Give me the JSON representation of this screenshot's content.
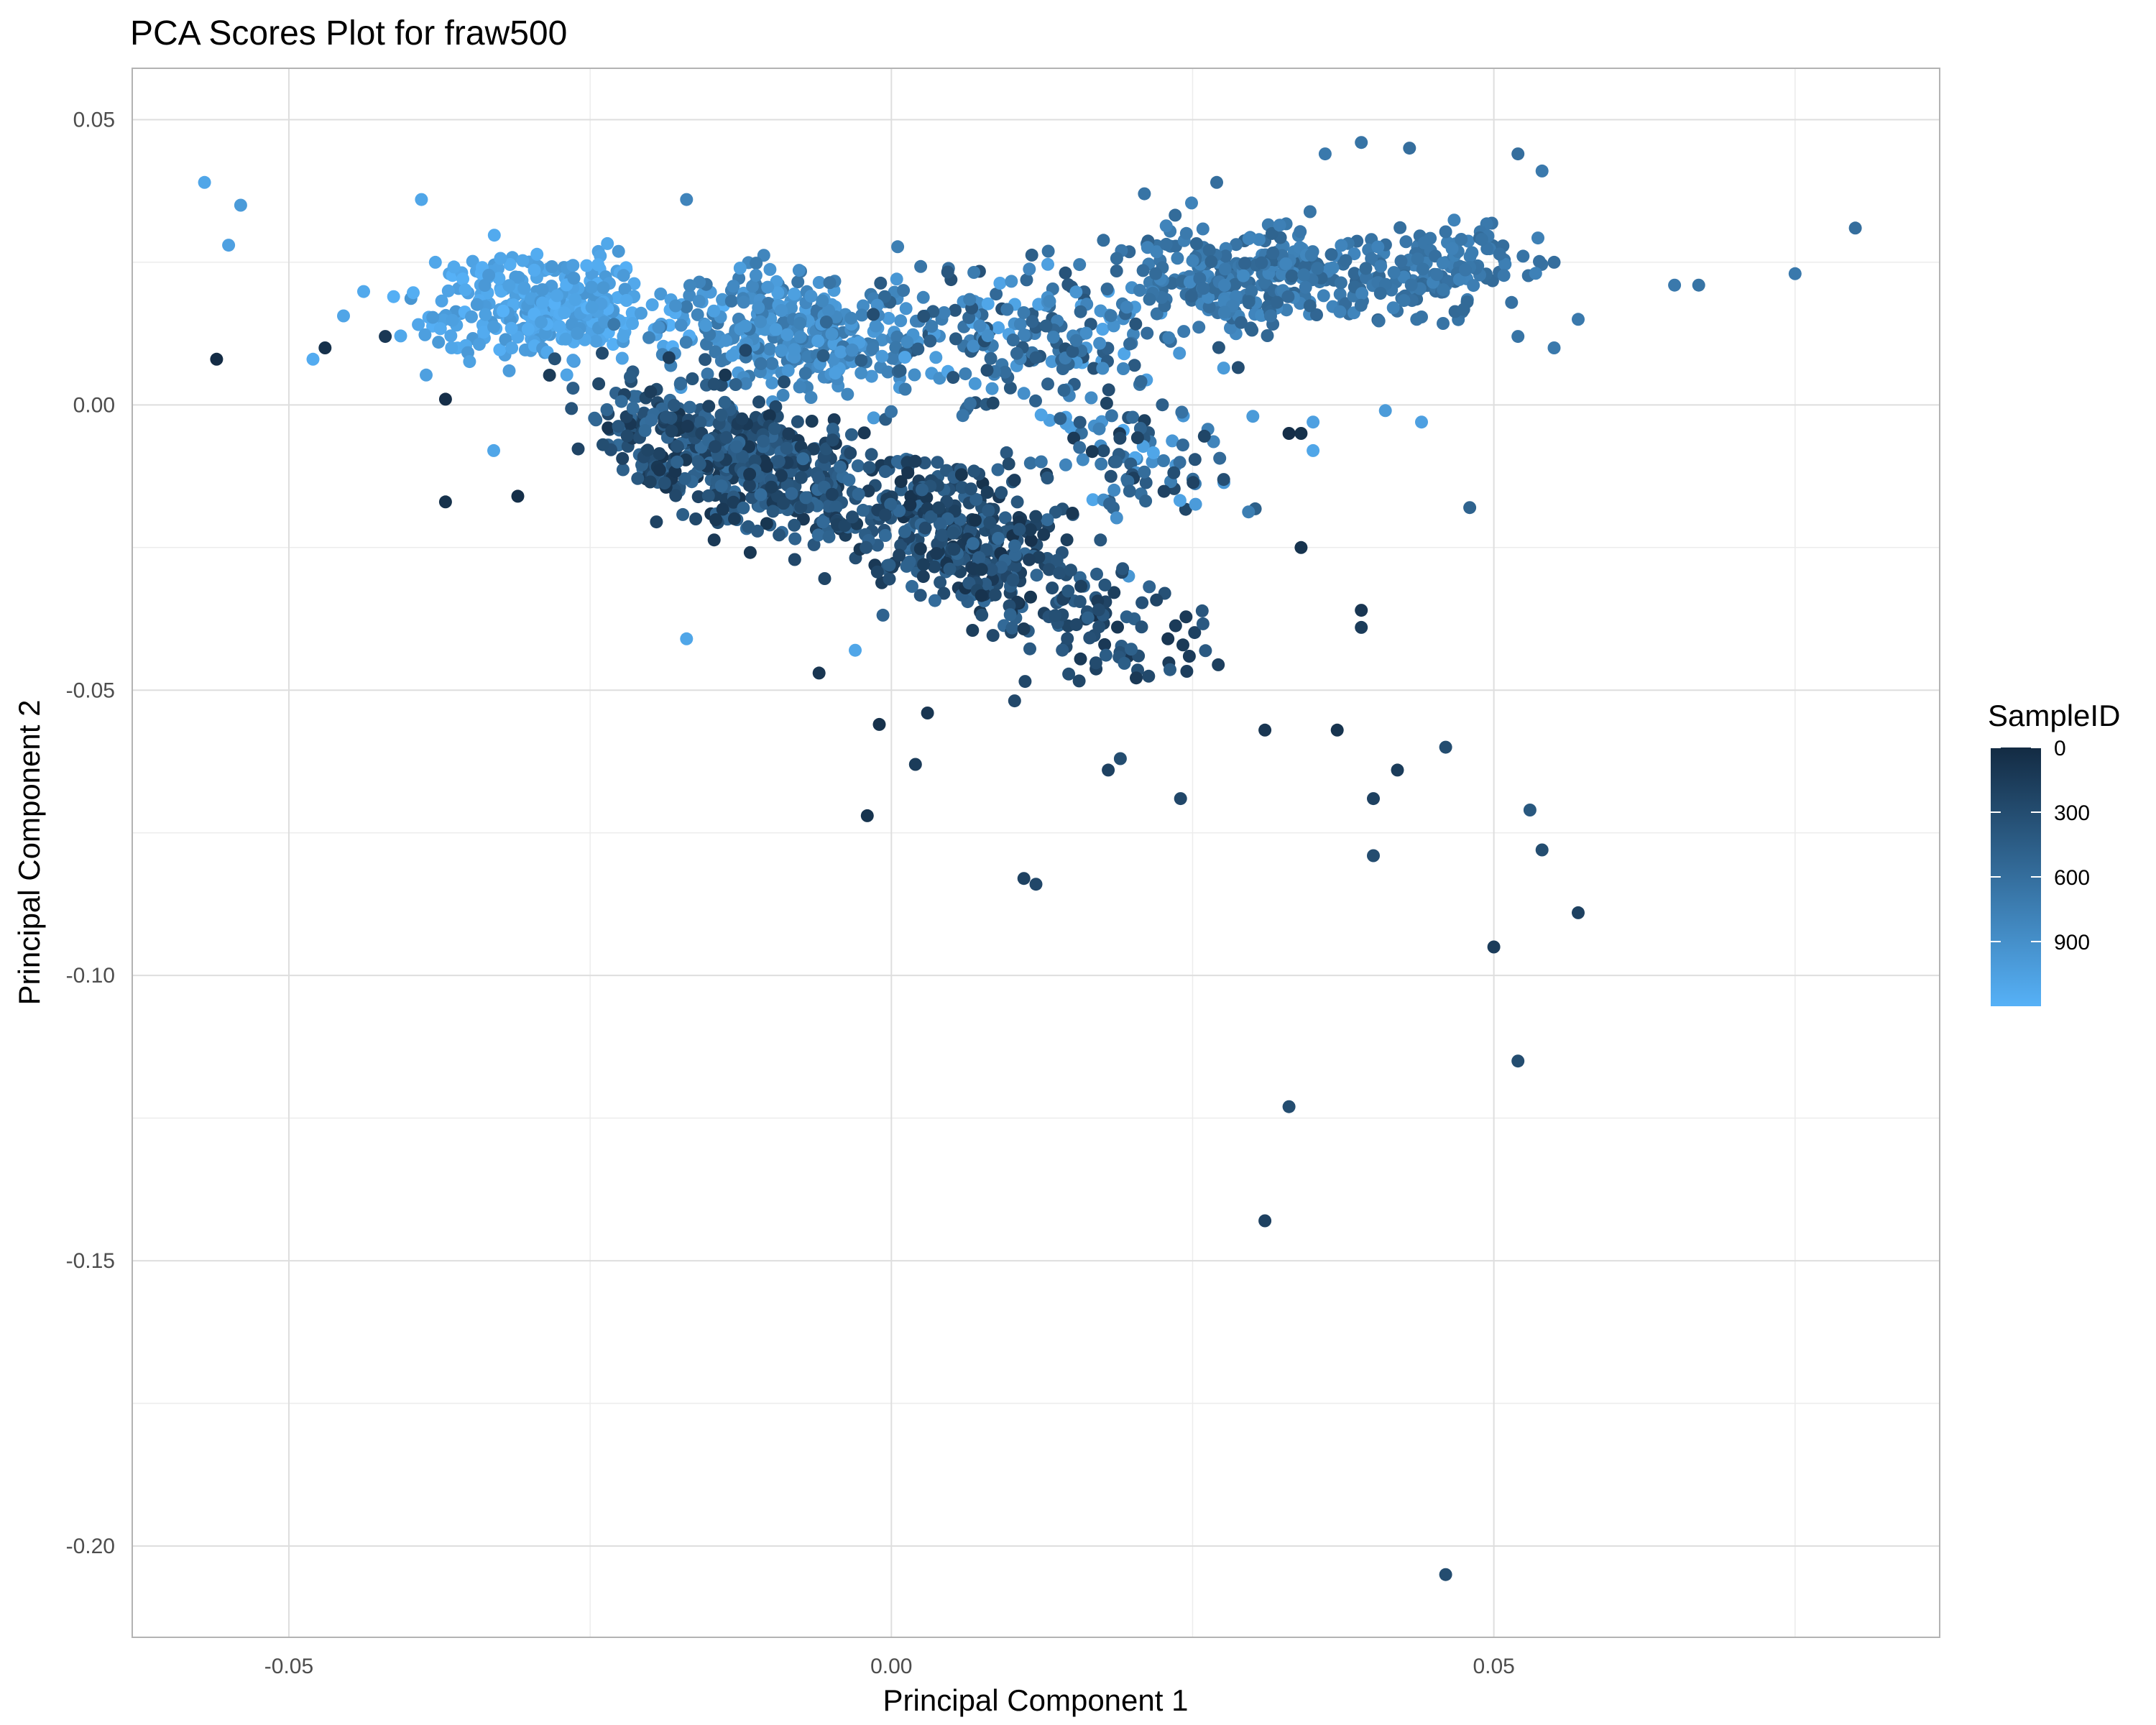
{
  "chart_data": {
    "type": "scatter",
    "title": "PCA Scores Plot for fraw500",
    "xlabel": "Principal Component 1",
    "ylabel": "Principal Component 2",
    "xlim": [
      -0.063,
      0.087
    ],
    "ylim": [
      -0.216,
      0.059
    ],
    "x_ticks": [
      -0.05,
      0.0,
      0.05
    ],
    "x_tick_labels": [
      "-0.05",
      "0.00",
      "0.05"
    ],
    "y_ticks": [
      0.05,
      0.0,
      -0.05,
      -0.1,
      -0.15,
      -0.2
    ],
    "y_tick_labels": [
      "0.05",
      "0.00",
      "-0.05",
      "-0.10",
      "-0.15",
      "-0.20"
    ],
    "grid": true,
    "legend": {
      "title": "SampleID",
      "position": "right",
      "type": "colorbar",
      "range": [
        0,
        1200
      ],
      "ticks": [
        0,
        300,
        600,
        900
      ],
      "tick_labels": [
        "0",
        "300",
        "600",
        "900"
      ],
      "color_low": "#132B43",
      "color_high": "#56B1F7"
    },
    "colors": {
      "low": "#132B43",
      "high": "#56B1F7",
      "grid": "#dedede",
      "panel_border": "#b3b3b3"
    },
    "cluster_summary": [
      {
        "name": "upper-left light cluster",
        "x_range": [
          -0.05,
          -0.02
        ],
        "y_range": [
          -0.01,
          0.04
        ],
        "sample_id_range": [
          900,
          1200
        ]
      },
      {
        "name": "dense central dark cluster",
        "x_range": [
          -0.03,
          0.02
        ],
        "y_range": [
          -0.045,
          0.005
        ],
        "sample_id_range": [
          0,
          700
        ]
      },
      {
        "name": "upper-right mid cluster",
        "x_range": [
          0.015,
          0.057
        ],
        "y_range": [
          0.0,
          0.046
        ],
        "sample_id_range": [
          500,
          800
        ]
      }
    ],
    "points": [
      {
        "x": -0.057,
        "y": 0.039,
        "id": 1100
      },
      {
        "x": -0.054,
        "y": 0.035,
        "id": 1000
      },
      {
        "x": -0.055,
        "y": 0.028,
        "id": 1050
      },
      {
        "x": -0.048,
        "y": 0.008,
        "id": 1150
      },
      {
        "x": -0.056,
        "y": 0.008,
        "id": 10
      },
      {
        "x": -0.047,
        "y": 0.01,
        "id": 50
      },
      {
        "x": -0.042,
        "y": 0.012,
        "id": 120
      },
      {
        "x": -0.039,
        "y": 0.036,
        "id": 1100
      },
      {
        "x": -0.037,
        "y": 0.001,
        "id": 30
      },
      {
        "x": -0.037,
        "y": -0.017,
        "id": 60
      },
      {
        "x": -0.031,
        "y": -0.016,
        "id": 40
      },
      {
        "x": -0.033,
        "y": -0.008,
        "id": 1100
      },
      {
        "x": -0.017,
        "y": -0.041,
        "id": 1100
      },
      {
        "x": -0.017,
        "y": 0.036,
        "id": 800
      },
      {
        "x": -0.006,
        "y": -0.047,
        "id": 100
      },
      {
        "x": -0.003,
        "y": -0.043,
        "id": 1100
      },
      {
        "x": -0.001,
        "y": -0.056,
        "id": 50
      },
      {
        "x": -0.002,
        "y": -0.072,
        "id": 80
      },
      {
        "x": 0.002,
        "y": -0.063,
        "id": 150
      },
      {
        "x": 0.003,
        "y": -0.054,
        "id": 100
      },
      {
        "x": 0.011,
        "y": -0.083,
        "id": 200
      },
      {
        "x": 0.012,
        "y": -0.084,
        "id": 250
      },
      {
        "x": 0.019,
        "y": -0.062,
        "id": 300
      },
      {
        "x": 0.018,
        "y": -0.064,
        "id": 200
      },
      {
        "x": 0.024,
        "y": -0.069,
        "id": 250
      },
      {
        "x": 0.031,
        "y": -0.057,
        "id": 100
      },
      {
        "x": 0.033,
        "y": -0.123,
        "id": 300
      },
      {
        "x": 0.031,
        "y": -0.143,
        "id": 200
      },
      {
        "x": 0.037,
        "y": -0.057,
        "id": 80
      },
      {
        "x": 0.04,
        "y": -0.069,
        "id": 200
      },
      {
        "x": 0.04,
        "y": -0.079,
        "id": 300
      },
      {
        "x": 0.042,
        "y": -0.064,
        "id": 150
      },
      {
        "x": 0.046,
        "y": -0.06,
        "id": 300
      },
      {
        "x": 0.046,
        "y": -0.205,
        "id": 300
      },
      {
        "x": 0.048,
        "y": -0.018,
        "id": 500
      },
      {
        "x": 0.05,
        "y": -0.095,
        "id": 150
      },
      {
        "x": 0.052,
        "y": -0.115,
        "id": 300
      },
      {
        "x": 0.053,
        "y": -0.071,
        "id": 400
      },
      {
        "x": 0.054,
        "y": -0.078,
        "id": 300
      },
      {
        "x": 0.057,
        "y": -0.089,
        "id": 200
      },
      {
        "x": 0.039,
        "y": -0.036,
        "id": 100
      },
      {
        "x": 0.039,
        "y": -0.039,
        "id": 150
      },
      {
        "x": 0.034,
        "y": -0.025,
        "id": 80
      },
      {
        "x": 0.034,
        "y": -0.005,
        "id": 50
      },
      {
        "x": 0.033,
        "y": -0.005,
        "id": 30
      },
      {
        "x": 0.035,
        "y": -0.008,
        "id": 1100
      },
      {
        "x": 0.03,
        "y": -0.002,
        "id": 1000
      },
      {
        "x": 0.035,
        "y": -0.003,
        "id": 1050
      },
      {
        "x": 0.041,
        "y": -0.001,
        "id": 1000
      },
      {
        "x": 0.044,
        "y": -0.003,
        "id": 1050
      },
      {
        "x": 0.052,
        "y": 0.044,
        "id": 600
      },
      {
        "x": 0.054,
        "y": 0.041,
        "id": 700
      },
      {
        "x": 0.049,
        "y": 0.029,
        "id": 650
      },
      {
        "x": 0.055,
        "y": 0.025,
        "id": 600
      },
      {
        "x": 0.057,
        "y": 0.015,
        "id": 700
      },
      {
        "x": 0.052,
        "y": 0.012,
        "id": 650
      },
      {
        "x": 0.055,
        "y": 0.01,
        "id": 700
      },
      {
        "x": 0.065,
        "y": 0.021,
        "id": 700
      },
      {
        "x": 0.067,
        "y": 0.021,
        "id": 650
      },
      {
        "x": 0.075,
        "y": 0.023,
        "id": 700
      },
      {
        "x": 0.08,
        "y": 0.031,
        "id": 600
      },
      {
        "x": 0.039,
        "y": 0.046,
        "id": 650
      },
      {
        "x": 0.036,
        "y": 0.044,
        "id": 700
      },
      {
        "x": 0.043,
        "y": 0.045,
        "id": 600
      },
      {
        "x": 0.027,
        "y": 0.039,
        "id": 600
      },
      {
        "x": 0.021,
        "y": 0.037,
        "id": 650
      }
    ]
  }
}
